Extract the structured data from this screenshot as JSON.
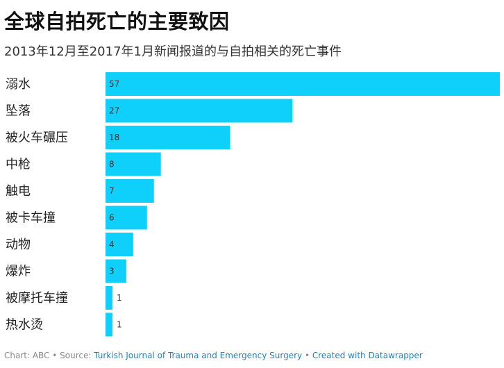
{
  "title": "全球自拍死亡的主要致因",
  "subtitle": "2013年12月至2017年1月新闻报道的与自拍相关的死亡事件",
  "colors": {
    "bar": "#0ed0fb"
  },
  "chart_data": {
    "type": "bar",
    "orientation": "horizontal",
    "categories": [
      "溺水",
      "坠落",
      "被火车碾压",
      "中枪",
      "触电",
      "被卡车撞",
      "动物",
      "爆炸",
      "被摩托车撞",
      "热水烫"
    ],
    "values": [
      57,
      27,
      18,
      8,
      7,
      6,
      4,
      3,
      1,
      1
    ],
    "xlim": [
      0,
      57
    ],
    "grid": false,
    "legend": "none"
  },
  "footer": {
    "chart_by": "Chart: ABC",
    "source_prefix": "Source: ",
    "source_name": "Turkish Journal of Trauma and Emergency Surgery",
    "created_with": "Created with Datawrapper",
    "separator": " • "
  }
}
